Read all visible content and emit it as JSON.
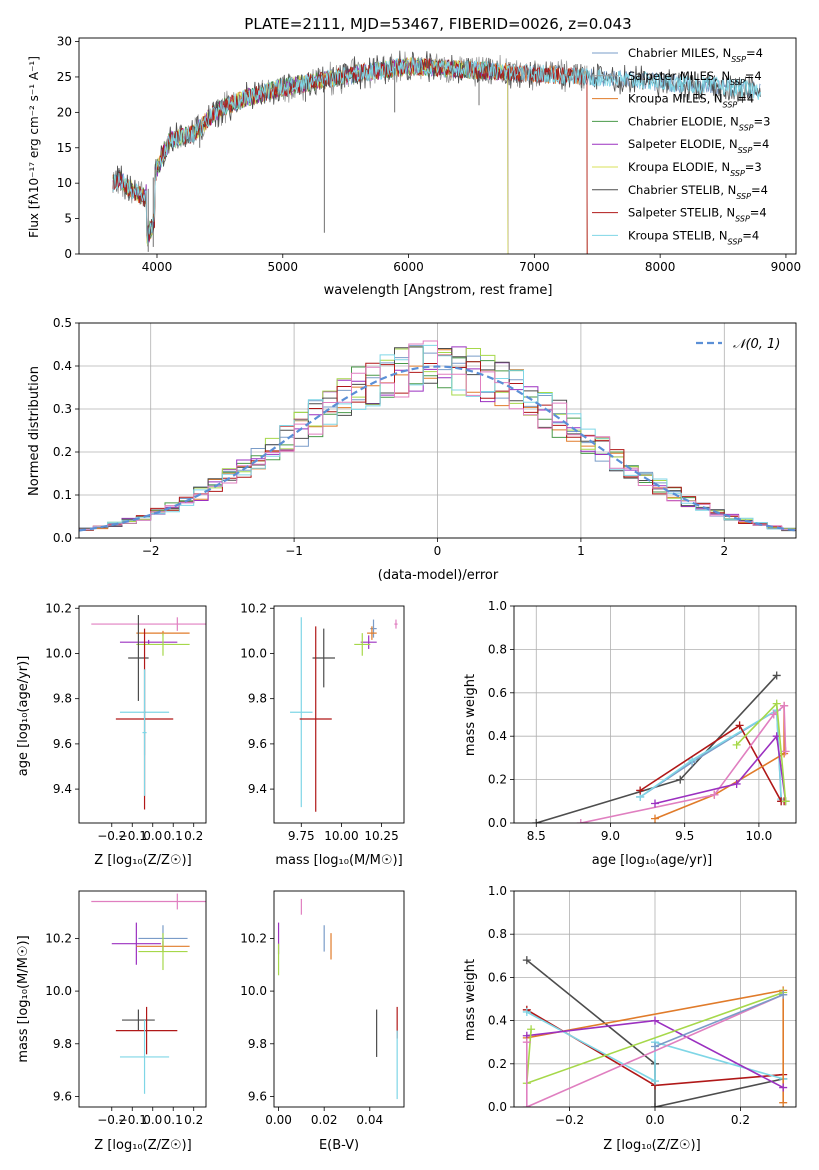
{
  "figure_title": "PLATE=2111, MJD=53467, FIBERID=0026, z=0.043",
  "colors": {
    "Chabrier MILES": "#7a9cc8",
    "Salpeter MILES": "#9a9a9a",
    "Kroupa MILES": "#e07b2a",
    "Chabrier ELODIE": "#4a9a4a",
    "Salpeter ELODIE": "#9b30c0",
    "Kroupa ELODIE": "#d8e05a",
    "Chabrier STELIB": "#4d4d4d",
    "Salpeter STELIB": "#b01818",
    "Kroupa STELIB": "#7fd6e6",
    "pink": "#e07fc0",
    "lime": "#a6d84a",
    "normal": "#5b8fd6"
  },
  "chart_data": [
    {
      "type": "line",
      "panel": "spectrum",
      "title": "PLATE=2111, MJD=53467, FIBERID=0026, z=0.043",
      "xlabel": "wavelength [Angstrom, rest frame]",
      "ylabel": "Flux [fλ10⁻¹⁷ erg cm⁻² s⁻¹ A⁻¹]",
      "xlim": [
        3380,
        9080
      ],
      "ylim": [
        0,
        30.5
      ],
      "xticks": [
        4000,
        5000,
        6000,
        7000,
        8000,
        9000
      ],
      "yticks": [
        0,
        5,
        10,
        15,
        20,
        25,
        30
      ],
      "legend_position": "right",
      "legend": [
        "Chabrier MILES, N_SSP=4",
        "Salpeter MILES, N_SSP=4",
        "Kroupa MILES, N_SSP=4",
        "Chabrier ELODIE, N_SSP=3",
        "Salpeter ELODIE, N_SSP=4",
        "Kroupa ELODIE, N_SSP=3",
        "Chabrier STELIB, N_SSP=4",
        "Salpeter STELIB, N_SSP=4",
        "Kroupa STELIB, N_SSP=4"
      ],
      "series_keys": [
        "Chabrier MILES",
        "Salpeter MILES",
        "Kroupa MILES",
        "Chabrier ELODIE",
        "Salpeter ELODIE",
        "Kroupa ELODIE",
        "Chabrier STELIB",
        "Salpeter STELIB",
        "Kroupa STELIB"
      ],
      "continuum": {
        "x": [
          3650,
          3700,
          3800,
          3900,
          4000,
          4100,
          4200,
          4300,
          4400,
          4500,
          4700,
          5000,
          5300,
          5600,
          6000,
          6500,
          7000,
          7400,
          7800,
          8200,
          8600,
          8800
        ],
        "y": [
          10.0,
          10.5,
          9.0,
          8.0,
          12.0,
          16.0,
          16.5,
          17.0,
          19.0,
          20.5,
          22.0,
          23.5,
          24.5,
          25.5,
          26.5,
          26.0,
          25.5,
          25.0,
          24.5,
          24.0,
          23.5,
          23.0
        ]
      },
      "ends": {
        "Chabrier MILES": 8800,
        "Salpeter MILES": 7420,
        "Kroupa MILES": 7420,
        "Chabrier ELODIE": 6790,
        "Salpeter ELODIE": 6790,
        "Kroupa ELODIE": 6790,
        "Chabrier STELIB": 8800,
        "Salpeter STELIB": 7420,
        "Kroupa STELIB": 8800
      },
      "spikes": [
        {
          "x": 3930,
          "y": 0.3
        },
        {
          "x": 3970,
          "y": 1.0
        },
        {
          "x": 5330,
          "y": 3.0
        },
        {
          "x": 5890,
          "y": 20.0
        },
        {
          "x": 6560,
          "y": 21.0
        },
        {
          "x": 5180,
          "y": 21.5
        },
        {
          "x": 4860,
          "y": 22.0
        },
        {
          "x": 4340,
          "y": 15.0
        }
      ]
    },
    {
      "type": "line",
      "panel": "residual_histogram",
      "xlabel": "(data-model)/error",
      "ylabel": "Normed distribution",
      "xlim": [
        -2.5,
        2.5
      ],
      "ylim": [
        0,
        0.5
      ],
      "xticks": [
        -2,
        -1,
        0,
        1,
        2
      ],
      "yticks": [
        0.0,
        0.1,
        0.2,
        0.3,
        0.4,
        0.5
      ],
      "grid": true,
      "legend_position": "top-right",
      "legend": [
        "𝒩(0, 1)"
      ],
      "bin_width": 0.1,
      "normal_curve": {
        "mean": 0,
        "sigma": 1
      }
    },
    {
      "type": "scatter",
      "panel": "age_vs_Z",
      "xlabel": "Z [log₁₀(Z/Z☉)]",
      "ylabel": "age  [log₁₀(age/yr)]",
      "xlim": [
        -0.36,
        0.26
      ],
      "ylim": [
        9.25,
        10.21
      ],
      "xticks": [
        -0.2,
        -0.1,
        0.0,
        0.1,
        0.2
      ],
      "yticks": [
        9.4,
        9.6,
        9.8,
        10.0,
        10.2
      ],
      "points": [
        {
          "series": "pink",
          "x": 0.12,
          "y": 10.13,
          "xerr": 0.42,
          "yerr": 0.03
        },
        {
          "series": "Salpeter ELODIE",
          "x": -0.02,
          "y": 10.05,
          "xerr": 0.14,
          "yerr": 0.01
        },
        {
          "series": "Kroupa MILES",
          "x": 0.05,
          "y": 10.09,
          "xerr": 0.13,
          "yerr": 0.01
        },
        {
          "series": "lime",
          "x": 0.05,
          "y": 10.04,
          "xerr": 0.13,
          "yerr": 0.05
        },
        {
          "series": "Chabrier STELIB",
          "x": -0.07,
          "y": 9.98,
          "xerr": 0.05,
          "yerr": 0.19
        },
        {
          "series": "Kroupa STELIB",
          "x": -0.04,
          "y": 9.74,
          "xerr": 0.12,
          "yerr": 0.19
        },
        {
          "series": "Salpeter STELIB",
          "x": -0.04,
          "y": 9.71,
          "xerr": 0.14,
          "yerr": 0.4
        },
        {
          "series": "Kroupa STELIB",
          "x": -0.04,
          "y": 9.65,
          "xerr": 0.01,
          "yerr": 0.28
        }
      ]
    },
    {
      "type": "scatter",
      "panel": "age_vs_mass",
      "xlabel": "mass [log₁₀(M/M☉)]",
      "ylabel": "",
      "xlim": [
        9.58,
        10.39
      ],
      "ylim": [
        9.25,
        10.21
      ],
      "xticks": [
        9.75,
        10.0,
        10.25
      ],
      "xticklabels": [
        "9.75",
        "10.00",
        "10.25"
      ],
      "yticks": [
        9.4,
        9.6,
        9.8,
        10.0,
        10.2
      ],
      "points": [
        {
          "series": "pink",
          "x": 10.34,
          "y": 10.13,
          "xerr": 0.01,
          "yerr": 0.02
        },
        {
          "series": "Chabrier MILES",
          "x": 10.2,
          "y": 10.11,
          "xerr": 0.02,
          "yerr": 0.04
        },
        {
          "series": "Kroupa MILES",
          "x": 10.19,
          "y": 10.09,
          "xerr": 0.03,
          "yerr": 0.03
        },
        {
          "series": "Salpeter ELODIE",
          "x": 10.17,
          "y": 10.05,
          "xerr": 0.05,
          "yerr": 0.03
        },
        {
          "series": "lime",
          "x": 10.13,
          "y": 10.04,
          "xerr": 0.05,
          "yerr": 0.05
        },
        {
          "series": "Chabrier STELIB",
          "x": 9.89,
          "y": 9.98,
          "xerr": 0.07,
          "yerr": 0.13
        },
        {
          "series": "Kroupa STELIB",
          "x": 9.75,
          "y": 9.74,
          "xerr": 0.07,
          "yerr": 0.42
        },
        {
          "series": "Salpeter STELIB",
          "x": 9.84,
          "y": 9.71,
          "xerr": 0.1,
          "yerr": 0.41
        }
      ]
    },
    {
      "type": "line",
      "panel": "massweight_vs_age",
      "xlabel": "age  [log₁₀(age/yr)]",
      "ylabel": "mass weight",
      "xlim": [
        8.35,
        10.25
      ],
      "ylim": [
        0,
        1.0
      ],
      "xticks": [
        8.5,
        9.0,
        9.5,
        10.0
      ],
      "yticks": [
        0.0,
        0.2,
        0.4,
        0.6,
        0.8,
        1.0
      ],
      "grid": true,
      "series": [
        {
          "key": "Chabrier STELIB",
          "x": [
            8.5,
            9.47,
            10.12
          ],
          "y": [
            0.0,
            0.2,
            0.68
          ]
        },
        {
          "key": "Chabrier MILES",
          "x": [
            9.2,
            9.55,
            10.12,
            10.15
          ],
          "y": [
            0.12,
            0.28,
            0.52,
            0.1
          ]
        },
        {
          "key": "Kroupa STELIB",
          "x": [
            9.2,
            9.55,
            10.12,
            10.15
          ],
          "y": [
            0.12,
            0.29,
            0.52,
            0.11
          ]
        },
        {
          "key": "Salpeter STELIB",
          "x": [
            9.2,
            9.87,
            10.15,
            10.17
          ],
          "y": [
            0.15,
            0.45,
            0.1,
            0.1
          ]
        },
        {
          "key": "Kroupa MILES",
          "x": [
            9.3,
            9.7,
            10.17,
            10.17
          ],
          "y": [
            0.02,
            0.13,
            0.32,
            0.54
          ]
        },
        {
          "key": "pink",
          "x": [
            8.8,
            9.7,
            10.1,
            10.17,
            10.18
          ],
          "y": [
            0.0,
            0.13,
            0.5,
            0.54,
            0.33
          ]
        },
        {
          "key": "Salpeter ELODIE",
          "x": [
            9.3,
            9.85,
            10.12,
            10.18
          ],
          "y": [
            0.09,
            0.18,
            0.4,
            0.1
          ]
        },
        {
          "key": "lime",
          "x": [
            9.85,
            10.12,
            10.18
          ],
          "y": [
            0.36,
            0.55,
            0.1
          ]
        }
      ]
    },
    {
      "type": "scatter",
      "panel": "mass_vs_Z",
      "xlabel": "Z [log₁₀(Z/Z☉)]",
      "ylabel": "mass [log₁₀(M/M☉)]",
      "xlim": [
        -0.36,
        0.26
      ],
      "ylim": [
        9.56,
        10.38
      ],
      "xticks": [
        -0.2,
        -0.1,
        0.0,
        0.1,
        0.2
      ],
      "yticks": [
        9.6,
        9.8,
        10.0,
        10.2
      ],
      "points": [
        {
          "series": "pink",
          "x": 0.12,
          "y": 10.34,
          "xerr": 0.42,
          "yerr": 0.03
        },
        {
          "series": "Chabrier MILES",
          "x": 0.05,
          "y": 10.2,
          "xerr": 0.12,
          "yerr": 0.05
        },
        {
          "series": "Salpeter ELODIE",
          "x": -0.08,
          "y": 10.18,
          "xerr": 0.12,
          "yerr": 0.08
        },
        {
          "series": "Kroupa MILES",
          "x": 0.05,
          "y": 10.17,
          "xerr": 0.13,
          "yerr": 0.02
        },
        {
          "series": "lime",
          "x": 0.05,
          "y": 10.15,
          "xerr": 0.12,
          "yerr": 0.07
        },
        {
          "series": "Chabrier STELIB",
          "x": -0.07,
          "y": 9.89,
          "xerr": 0.08,
          "yerr": 0.04
        },
        {
          "series": "Salpeter STELIB",
          "x": -0.03,
          "y": 9.85,
          "xerr": 0.15,
          "yerr": 0.09
        },
        {
          "series": "Kroupa STELIB",
          "x": -0.04,
          "y": 9.75,
          "xerr": 0.12,
          "yerr": 0.14
        }
      ]
    },
    {
      "type": "scatter",
      "panel": "mass_vs_EBV",
      "xlabel": "E(B-V)",
      "ylabel": "",
      "xlim": [
        -0.002,
        0.055
      ],
      "ylim": [
        9.56,
        10.38
      ],
      "xticks": [
        0.0,
        0.02,
        0.04
      ],
      "xticklabels": [
        "0.00",
        "0.02",
        "0.04"
      ],
      "yticks": [
        9.6,
        9.8,
        10.0,
        10.2
      ],
      "points": [
        {
          "series": "Salpeter ELODIE",
          "x": 0.0,
          "y": 10.2,
          "yerr": 0.06
        },
        {
          "series": "lime",
          "x": 0.0,
          "y": 10.12,
          "yerr": 0.06
        },
        {
          "series": "pink",
          "x": 0.01,
          "y": 10.32,
          "yerr": 0.03
        },
        {
          "series": "Chabrier MILES",
          "x": 0.02,
          "y": 10.2,
          "yerr": 0.05
        },
        {
          "series": "Kroupa MILES",
          "x": 0.023,
          "y": 10.17,
          "yerr": 0.05
        },
        {
          "series": "Chabrier STELIB",
          "x": 0.043,
          "y": 9.84,
          "yerr": 0.09
        },
        {
          "series": "Salpeter STELIB",
          "x": 0.052,
          "y": 9.88,
          "yerr": 0.06
        },
        {
          "series": "Kroupa STELIB",
          "x": 0.052,
          "y": 9.72,
          "yerr": 0.13
        }
      ]
    },
    {
      "type": "line",
      "panel": "massweight_vs_Z",
      "xlabel": "Z [log₁₀(Z/Z☉)]",
      "ylabel": "mass weight",
      "xlim": [
        -0.33,
        0.33
      ],
      "ylim": [
        0,
        1.0
      ],
      "xticks": [
        -0.2,
        0.0,
        0.2
      ],
      "yticks": [
        0.0,
        0.2,
        0.4,
        0.6,
        0.8,
        1.0
      ],
      "grid": true,
      "series": [
        {
          "key": "Chabrier STELIB",
          "x": [
            -0.3,
            0.0,
            0.0,
            0.3
          ],
          "y": [
            0.68,
            0.2,
            0.0,
            0.13
          ]
        },
        {
          "key": "Salpeter STELIB",
          "x": [
            -0.3,
            0.0,
            0.3
          ],
          "y": [
            0.45,
            0.1,
            0.15
          ]
        },
        {
          "key": "Kroupa STELIB",
          "x": [
            -0.3,
            0.0,
            0.0,
            0.3
          ],
          "y": [
            0.44,
            0.12,
            0.3,
            0.13
          ]
        },
        {
          "key": "Kroupa MILES",
          "x": [
            -0.3,
            0.3,
            0.3
          ],
          "y": [
            0.32,
            0.54,
            0.02
          ]
        },
        {
          "key": "Salpeter ELODIE",
          "x": [
            -0.3,
            0.0,
            0.3
          ],
          "y": [
            0.33,
            0.4,
            0.09
          ]
        },
        {
          "key": "lime",
          "x": [
            -0.29,
            -0.3,
            0.3
          ],
          "y": [
            0.36,
            0.11,
            0.53
          ]
        },
        {
          "key": "pink",
          "x": [
            -0.3,
            -0.3,
            0.3
          ],
          "y": [
            0.3,
            0.0,
            0.52
          ]
        },
        {
          "key": "Chabrier MILES",
          "x": [
            0.0,
            0.3
          ],
          "y": [
            0.28,
            0.52
          ]
        }
      ]
    }
  ]
}
